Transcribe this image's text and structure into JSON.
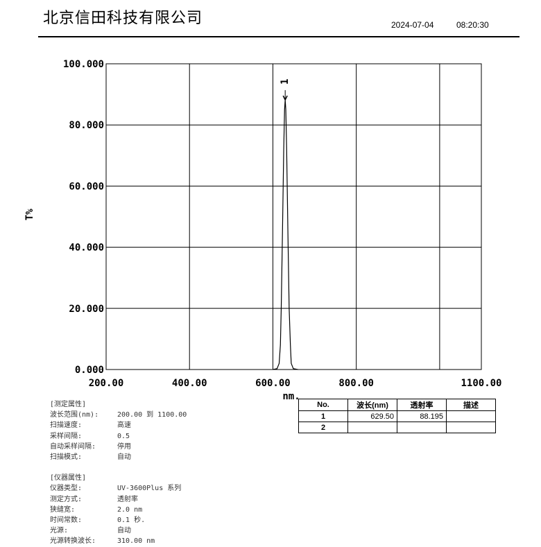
{
  "header": {
    "title": "北京信田科技有限公司",
    "date": "2024-07-04",
    "time": "08:20:30"
  },
  "chart_data": {
    "type": "line",
    "xlabel": "nm.",
    "ylabel": "T%",
    "xlim": [
      200,
      1100
    ],
    "ylim": [
      0,
      100
    ],
    "x_ticks": [
      {
        "v": 200,
        "label": "200.00"
      },
      {
        "v": 400,
        "label": "400.00"
      },
      {
        "v": 600,
        "label": "600.00"
      },
      {
        "v": 800,
        "label": "800.00"
      },
      {
        "v": 1100,
        "label": "1100.00"
      }
    ],
    "x_grid": [
      200,
      400,
      600,
      800,
      1000,
      1100
    ],
    "y_ticks": [
      {
        "v": 0,
        "label": "0.000"
      },
      {
        "v": 20,
        "label": "20.000"
      },
      {
        "v": 40,
        "label": "40.000"
      },
      {
        "v": 60,
        "label": "60.000"
      },
      {
        "v": 80,
        "label": "80.000"
      },
      {
        "v": 100,
        "label": "100.000"
      }
    ],
    "grid": true,
    "series": [
      {
        "x": [
          600,
          610,
          615,
          618,
          620,
          623,
          626,
          628,
          629.5,
          631,
          633,
          636,
          639,
          642,
          644,
          649,
          660
        ],
        "y": [
          0,
          0.3,
          2,
          8,
          20,
          45,
          72,
          85,
          88.195,
          85,
          72,
          45,
          20,
          8,
          2,
          0.3,
          0
        ]
      }
    ],
    "peaks": [
      {
        "label": "1",
        "x": 629.5,
        "y": 88.195
      }
    ],
    "color": "#000000"
  },
  "props": {
    "measure_title": "[测定属性]",
    "measure": [
      {
        "k": "波长范围(nm):",
        "v": "200.00 到 1100.00"
      },
      {
        "k": "扫描速度:",
        "v": "高速"
      },
      {
        "k": "采样间隔:",
        "v": "0.5"
      },
      {
        "k": "自动采样间隔:",
        "v": "停用"
      },
      {
        "k": "扫描模式:",
        "v": "自动"
      }
    ],
    "inst_title": "[仪器属性]",
    "inst": [
      {
        "k": "仪器类型:",
        "v": "UV-3600Plus 系列"
      },
      {
        "k": "测定方式:",
        "v": "透射率"
      },
      {
        "k": "狭缝宽:",
        "v": "2.0 nm"
      },
      {
        "k": "时间常数:",
        "v": "0.1 秒."
      },
      {
        "k": "光源:",
        "v": "自动"
      },
      {
        "k": "光源转换波长:",
        "v": "310.00 nm"
      }
    ]
  },
  "peak_table": {
    "headers": [
      "No.",
      "波长(nm)",
      "透射率",
      "描述"
    ],
    "rows": [
      [
        "1",
        "629.50",
        "88.195",
        ""
      ],
      [
        "2",
        "",
        "",
        ""
      ]
    ]
  }
}
